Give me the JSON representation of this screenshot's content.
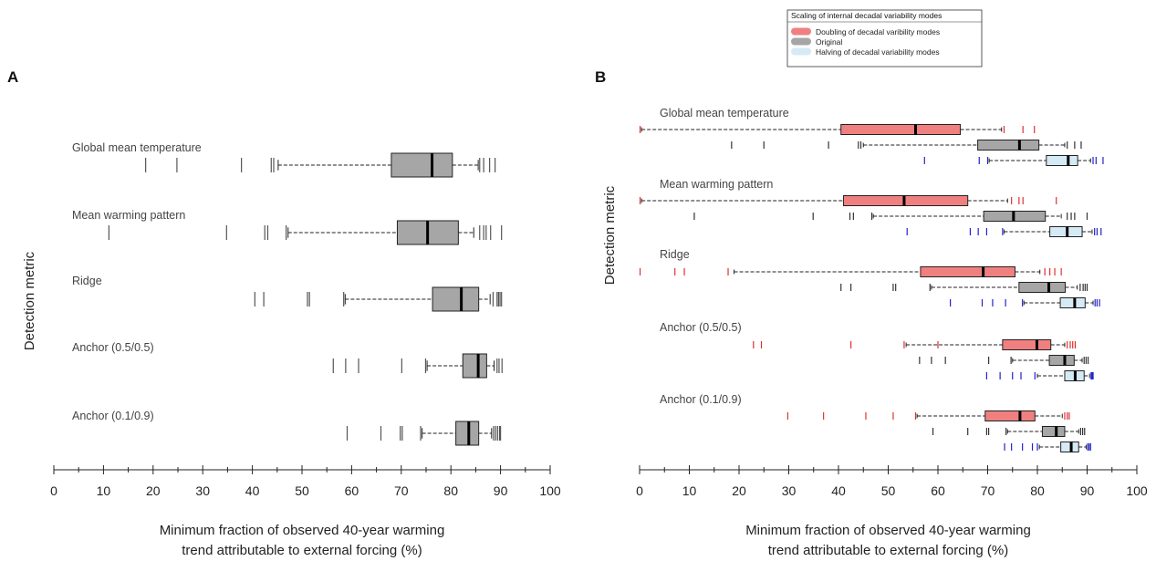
{
  "chart_data": [
    {
      "panel": "A",
      "type": "boxplot",
      "ylabel": "Detection metric",
      "xlabel": "Minimum fraction of observed 40-year warming",
      "xlabel2": "trend attributable to external forcing (%)",
      "xlim": [
        0,
        100
      ],
      "xticks": [
        0,
        10,
        20,
        30,
        40,
        50,
        60,
        70,
        80,
        90,
        100
      ],
      "colors": {
        "Original": "#a6a6a6"
      },
      "metrics": [
        {
          "name": "Global mean temperature",
          "rows": [
            {
              "variant": "Original",
              "q1": 68,
              "median": 76.2,
              "q3": 80.3,
              "wlo": 45.2,
              "whi": 85.5,
              "outliers": [
                18.5,
                24.8,
                37.8,
                43.8,
                44.3,
                85.8,
                86.6,
                87.8,
                88.9
              ]
            }
          ]
        },
        {
          "name": "Mean warming pattern",
          "rows": [
            {
              "variant": "Original",
              "q1": 69.2,
              "median": 75.3,
              "q3": 81.5,
              "wlo": 47.2,
              "whi": 84.6,
              "outliers": [
                11.1,
                34.8,
                42.5,
                43.1,
                46.8,
                85.8,
                86.6,
                87.1,
                88.0,
                90.2
              ]
            }
          ]
        },
        {
          "name": "Ridge",
          "rows": [
            {
              "variant": "Original",
              "q1": 76.3,
              "median": 82.1,
              "q3": 85.6,
              "wlo": 58.7,
              "whi": 87.9,
              "outliers": [
                40.5,
                42.3,
                51.1,
                51.5,
                58.4,
                88.5,
                89.3,
                89.6,
                89.9,
                90.2
              ]
            }
          ]
        },
        {
          "name": "Anchor (0.5/0.5)",
          "rows": [
            {
              "variant": "Original",
              "q1": 82.4,
              "median": 85.5,
              "q3": 87.2,
              "wlo": 75.2,
              "whi": 88.7,
              "outliers": [
                56.3,
                58.8,
                61.4,
                70.1,
                74.9,
                89.3,
                89.7,
                90.3
              ]
            }
          ]
        },
        {
          "name": "Anchor (0.1/0.9)",
          "rows": [
            {
              "variant": "Original",
              "q1": 81,
              "median": 83.6,
              "q3": 85.6,
              "wlo": 74.2,
              "whi": 88.2,
              "outliers": [
                59.1,
                65.9,
                69.8,
                70.2,
                73.9,
                88.6,
                89.0,
                89.4,
                89.8,
                90.0
              ]
            }
          ]
        }
      ]
    },
    {
      "panel": "B",
      "type": "boxplot",
      "ylabel": "Detection metric",
      "xlabel": "Minimum fraction of observed 40-year warming",
      "xlabel2": "trend attributable to external forcing (%)",
      "xlim": [
        0,
        100
      ],
      "xticks": [
        0,
        10,
        20,
        30,
        40,
        50,
        60,
        70,
        80,
        90,
        100
      ],
      "legend": {
        "title": "Scaling of internal decadal variability modes",
        "position": "top-right",
        "items": [
          {
            "label": "Doubling of decadal varibility modes",
            "variant": "Doubling"
          },
          {
            "label": "Original",
            "variant": "Original"
          },
          {
            "label": "Halving of decadal variability modes",
            "variant": "Halving"
          }
        ]
      },
      "colors": {
        "Doubling": "#f08080",
        "Doubling_tick": "#e03030",
        "Original": "#a6a6a6",
        "Original_tick": "#333333",
        "Halving": "#d6eaf5",
        "Halving_tick": "#2222cc"
      },
      "metrics": [
        {
          "name": "Global mean temperature",
          "rows": [
            {
              "variant": "Doubling",
              "q1": 40.5,
              "median": 55.5,
              "q3": 64.5,
              "wlo": 0.4,
              "whi": 72.8,
              "outliers": [
                0.1,
                73.3,
                77.1,
                79.4
              ]
            },
            {
              "variant": "Original",
              "q1": 68,
              "median": 76.4,
              "q3": 80.3,
              "wlo": 45.0,
              "whi": 85.5,
              "outliers": [
                18.5,
                25.0,
                38.0,
                44.0,
                44.5,
                86.0,
                87.5,
                88.8
              ]
            },
            {
              "variant": "Halving",
              "q1": 81.8,
              "median": 86.2,
              "q3": 88.1,
              "wlo": 70.3,
              "whi": 90.7,
              "outliers": [
                57.3,
                68.3,
                70.0,
                91.2,
                91.8,
                93.2
              ]
            }
          ]
        },
        {
          "name": "Mean warming pattern",
          "rows": [
            {
              "variant": "Doubling",
              "q1": 41,
              "median": 53.2,
              "q3": 66,
              "wlo": 0.4,
              "whi": 74.0,
              "outliers": [
                0.1,
                74.8,
                76.3,
                77.1,
                83.8
              ]
            },
            {
              "variant": "Original",
              "q1": 69.2,
              "median": 75.2,
              "q3": 81.6,
              "wlo": 47.0,
              "whi": 84.8,
              "outliers": [
                11.0,
                34.9,
                42.3,
                43.0,
                46.7,
                86.0,
                86.8,
                87.5,
                90.0
              ]
            },
            {
              "variant": "Halving",
              "q1": 82.5,
              "median": 86.0,
              "q3": 89.0,
              "wlo": 73.3,
              "whi": 91.0,
              "outliers": [
                53.8,
                66.5,
                68.1,
                69.8,
                73.0,
                91.5,
                92.0,
                92.8
              ]
            }
          ]
        },
        {
          "name": "Ridge",
          "rows": [
            {
              "variant": "Doubling",
              "q1": 56.5,
              "median": 69.1,
              "q3": 75.5,
              "wlo": 19.0,
              "whi": 80.5,
              "outliers": [
                0.1,
                7.1,
                9.0,
                17.8,
                81.5,
                82.5,
                83.5,
                84.8
              ]
            },
            {
              "variant": "Original",
              "q1": 76.3,
              "median": 82.3,
              "q3": 85.6,
              "wlo": 58.7,
              "whi": 88.0,
              "outliers": [
                40.5,
                42.5,
                51.0,
                51.5,
                58.4,
                88.6,
                89.2,
                89.6,
                90.0
              ]
            },
            {
              "variant": "Halving",
              "q1": 84.6,
              "median": 87.5,
              "q3": 89.6,
              "wlo": 77.3,
              "whi": 91.2,
              "outliers": [
                62.5,
                68.9,
                71.0,
                73.6,
                77.0,
                91.6,
                92.0,
                92.5
              ]
            }
          ]
        },
        {
          "name": "Anchor (0.5/0.5)",
          "rows": [
            {
              "variant": "Doubling",
              "q1": 73,
              "median": 79.9,
              "q3": 82.7,
              "wlo": 53.6,
              "whi": 85.5,
              "outliers": [
                22.9,
                24.5,
                42.5,
                53.2,
                60.0,
                86.0,
                86.6,
                87.1,
                87.6
              ]
            },
            {
              "variant": "Original",
              "q1": 82.4,
              "median": 85.5,
              "q3": 87.4,
              "wlo": 75.0,
              "whi": 89.0,
              "outliers": [
                56.3,
                58.7,
                61.5,
                70.2,
                74.7,
                89.4,
                89.8,
                90.2
              ]
            },
            {
              "variant": "Halving",
              "q1": 85.5,
              "median": 87.6,
              "q3": 89.4,
              "wlo": 80.0,
              "whi": 90.5,
              "outliers": [
                69.8,
                72.5,
                75.0,
                76.7,
                79.5,
                90.8,
                91.0,
                91.2
              ]
            }
          ]
        },
        {
          "name": "Anchor (0.1/0.9)",
          "rows": [
            {
              "variant": "Doubling",
              "q1": 69.5,
              "median": 76.5,
              "q3": 79.5,
              "wlo": 55.8,
              "whi": 85.0,
              "outliers": [
                29.8,
                37.0,
                45.5,
                51.0,
                55.5,
                85.5,
                86.0,
                86.4
              ]
            },
            {
              "variant": "Original",
              "q1": 81,
              "median": 83.8,
              "q3": 85.5,
              "wlo": 74.0,
              "whi": 88.3,
              "outliers": [
                59.0,
                66.0,
                69.8,
                70.2,
                73.7,
                88.7,
                89.1,
                89.5
              ]
            },
            {
              "variant": "Halving",
              "q1": 84.7,
              "median": 86.8,
              "q3": 88.3,
              "wlo": 80.4,
              "whi": 89.8,
              "outliers": [
                73.4,
                74.8,
                77.0,
                79.0,
                80.0,
                90.1,
                90.4,
                90.7
              ]
            }
          ]
        }
      ]
    }
  ]
}
